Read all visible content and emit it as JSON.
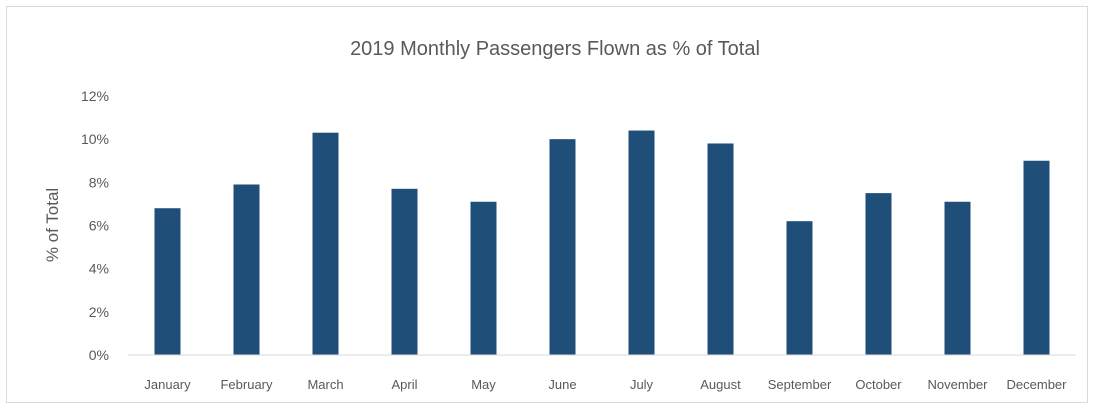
{
  "chart_data": {
    "type": "bar",
    "title": "2019 Monthly Passengers Flown as % of Total",
    "xlabel": "",
    "ylabel": "% of Total",
    "categories": [
      "January",
      "February",
      "March",
      "April",
      "May",
      "June",
      "July",
      "August",
      "September",
      "October",
      "November",
      "December"
    ],
    "values": [
      6.8,
      7.9,
      10.3,
      7.7,
      7.1,
      10.0,
      10.4,
      9.8,
      6.2,
      7.5,
      7.1,
      9.0
    ],
    "ylim": [
      0,
      12
    ],
    "yticks": [
      "0%",
      "2%",
      "4%",
      "6%",
      "8%",
      "10%",
      "12%"
    ],
    "grid": false,
    "legend": "none",
    "colors": {
      "bar": "#1f4e79",
      "axis": "#d9d9d9",
      "text": "#595959"
    }
  }
}
